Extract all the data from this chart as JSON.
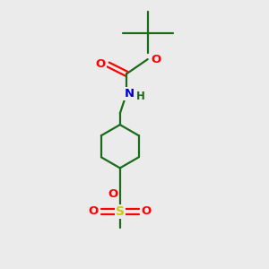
{
  "background_color": "#ebebeb",
  "atom_colors": {
    "O": "#ff0000",
    "N": "#0000cc",
    "S": "#cccc00",
    "C": "#1a6b1a"
  },
  "bond_color": "#1a6b1a",
  "figsize": [
    3.0,
    3.0
  ],
  "dpi": 100,
  "lw": 1.6
}
